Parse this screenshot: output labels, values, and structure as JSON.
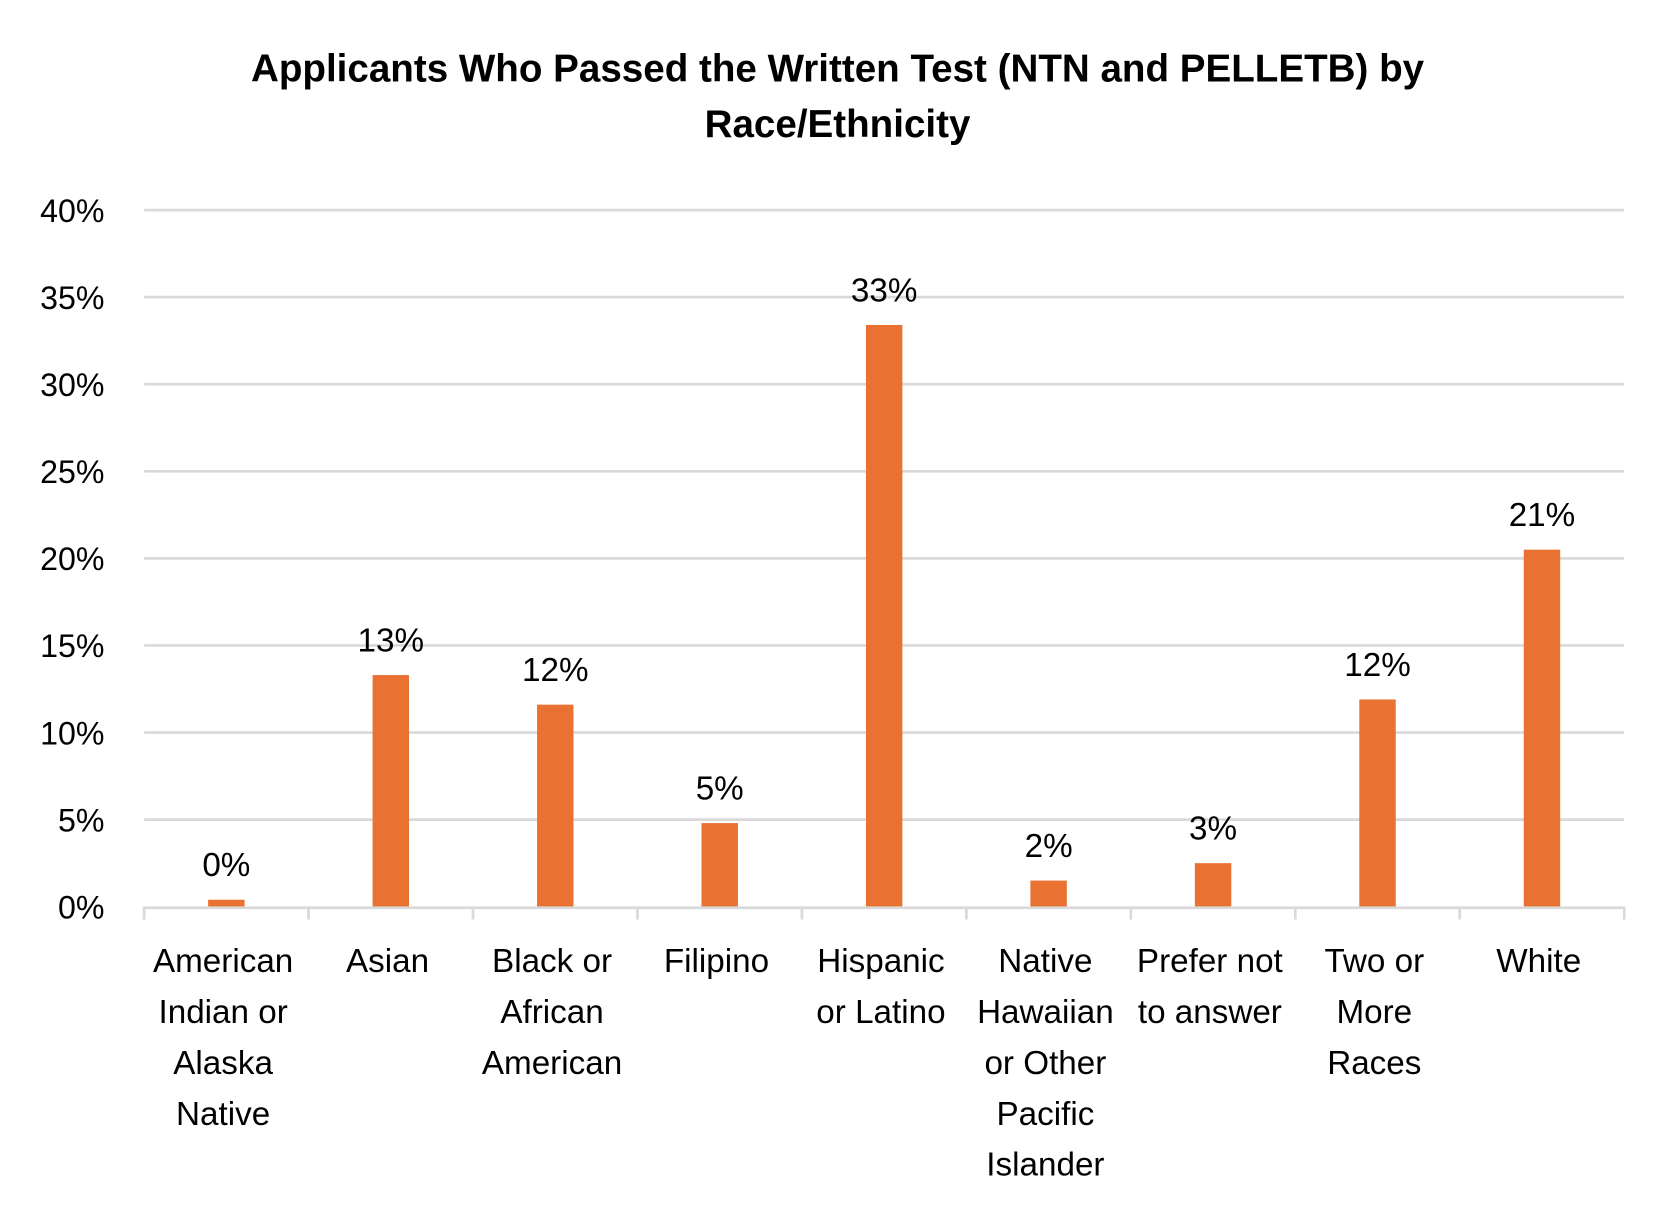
{
  "chart_data": {
    "type": "bar",
    "title": "Applicants Who Passed the Written Test (NTN and PELLETB) by Race/Ethnicity",
    "title_lines": [
      "Applicants Who Passed the Written Test (NTN and PELLETB) by",
      "Race/Ethnicity"
    ],
    "xlabel": "",
    "ylabel": "",
    "ylim": [
      0,
      40
    ],
    "y_ticks": [
      "0%",
      "5%",
      "10%",
      "15%",
      "20%",
      "25%",
      "30%",
      "35%",
      "40%"
    ],
    "grid": true,
    "legend": "none",
    "bar_color": "#E97132",
    "categories": [
      [
        "American",
        "Indian or",
        "Alaska",
        "Native"
      ],
      [
        "Asian"
      ],
      [
        "Black or",
        "African",
        "American"
      ],
      [
        "Filipino"
      ],
      [
        "Hispanic",
        "or Latino"
      ],
      [
        "Native",
        "Hawaiian",
        "or Other",
        "Pacific",
        "Islander"
      ],
      [
        "Prefer not",
        "to answer"
      ],
      [
        "Two or",
        "More",
        "Races"
      ],
      [
        "White"
      ]
    ],
    "values": [
      0.4,
      13.3,
      11.6,
      4.8,
      33.4,
      1.5,
      2.5,
      11.9,
      20.5
    ],
    "data_labels": [
      "0%",
      "13%",
      "12%",
      "5%",
      "33%",
      "2%",
      "3%",
      "12%",
      "21%"
    ]
  }
}
